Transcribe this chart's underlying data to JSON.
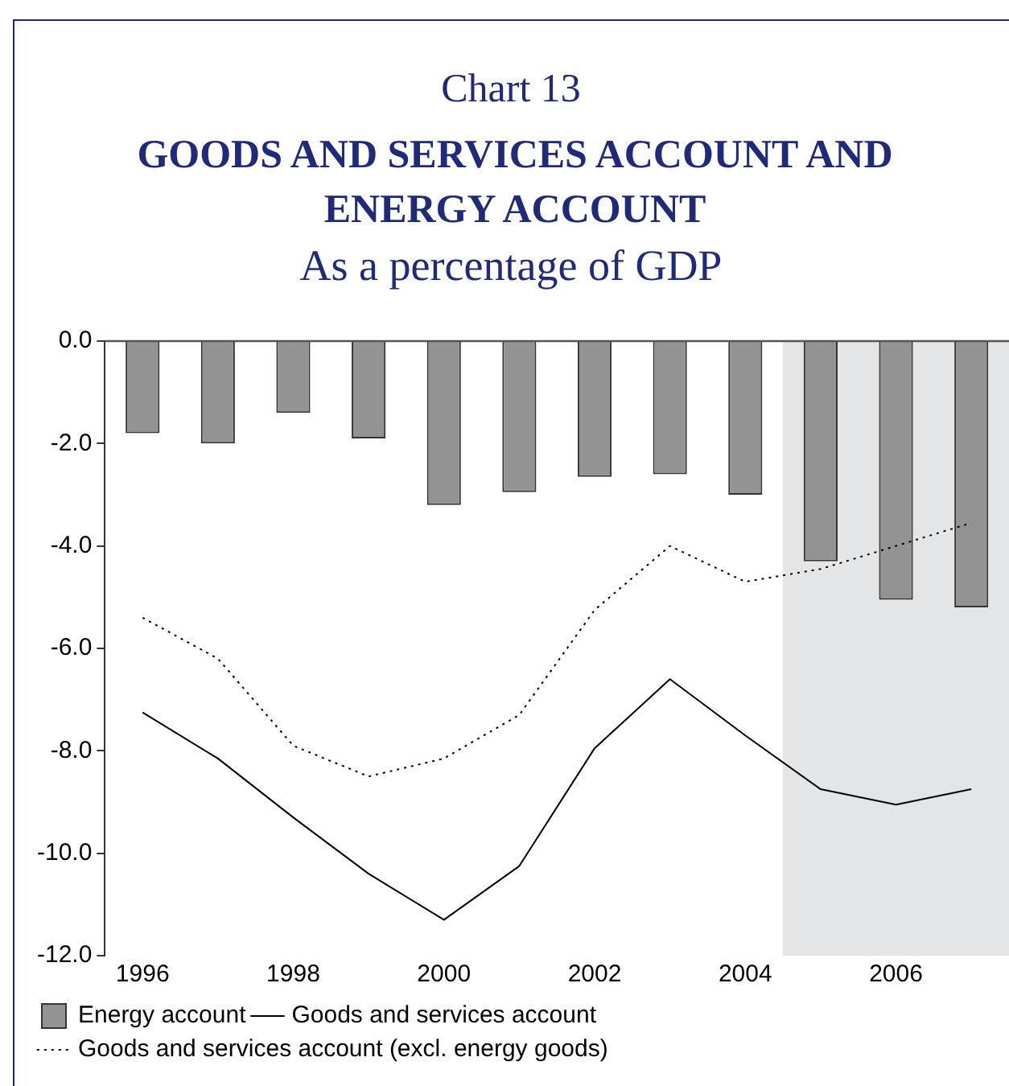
{
  "chart_data": {
    "type": "bar",
    "title": "GOODS AND SERVICES ACCOUNT AND ENERGY ACCOUNT",
    "subtitle": "As a percentage of GDP",
    "annotations": [
      "Chart 13"
    ],
    "x": [
      1996,
      1997,
      1998,
      1999,
      2000,
      2001,
      2002,
      2003,
      2004,
      2005,
      2006,
      2007
    ],
    "xlim": [
      1995.5,
      2007.5
    ],
    "xticks": [
      1996,
      1998,
      2000,
      2002,
      2004,
      2006
    ],
    "ylim": [
      -12,
      0
    ],
    "yticks": [
      {
        "value": 0,
        "label": "0.0"
      },
      {
        "value": -2,
        "label": "-2.0"
      },
      {
        "value": -4,
        "label": "-4.0"
      },
      {
        "value": -6,
        "label": "-6.0"
      },
      {
        "value": -8,
        "label": "-8.0"
      },
      {
        "value": -10,
        "label": "-10.0"
      },
      {
        "value": -12,
        "label": "-12.0"
      }
    ],
    "series": [
      {
        "name": "Energy account",
        "color": "#939393",
        "values": [
          -1.8,
          -2.0,
          -1.4,
          -1.9,
          -3.2,
          -2.95,
          -2.65,
          -2.6,
          -3.0,
          -4.3,
          -5.05,
          -5.2
        ]
      },
      {
        "name": "Goods and services account",
        "type": "line",
        "color": "#000000",
        "line_style": "solid",
        "values": [
          -7.25,
          -8.15,
          -9.3,
          -10.4,
          -11.3,
          -10.25,
          -7.95,
          -6.6,
          -7.7,
          -8.75,
          -9.05,
          -8.75
        ]
      },
      {
        "name": "Goods and services account (excl. energy goods)",
        "type": "line",
        "color": "#000000",
        "line_style": "dotted",
        "values": [
          -5.4,
          -6.2,
          -7.9,
          -8.5,
          -8.15,
          -7.3,
          -5.25,
          -4.0,
          -4.7,
          -4.45,
          -4.0,
          -3.55
        ]
      }
    ],
    "bands": [
      {
        "axis": "x",
        "from": 2004.5,
        "to": 2007.5,
        "color": "#e4e5e7"
      }
    ],
    "ref_lines": [
      {
        "axis": "y",
        "value": 0,
        "color": "#555555"
      }
    ],
    "grid": false,
    "legend": "bottom",
    "marker": "none"
  }
}
